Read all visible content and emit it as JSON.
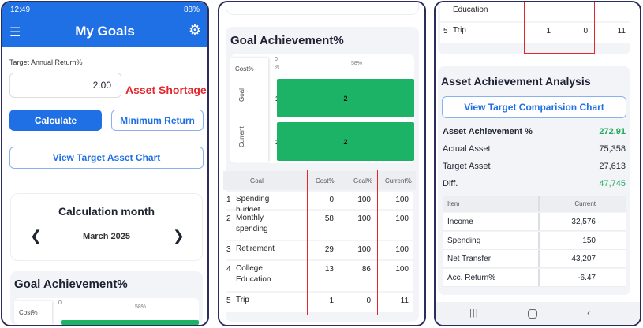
{
  "status_bar": {
    "time": "12:49",
    "battery": "88%"
  },
  "app": {
    "title": "My Goals"
  },
  "form": {
    "label": "Target Annual Return%",
    "value": "2.00",
    "warning": "Asset Shortage",
    "calculate": "Calculate",
    "minimum_return": "Minimum Return",
    "view_chart": "View Target Asset Chart"
  },
  "month": {
    "title": "Calculation month",
    "value": "March 2025"
  },
  "goal_achievement": {
    "title": "Goal Achievement%",
    "chart": {
      "legend": "Cost%",
      "axis_top": [
        "0",
        "%"
      ],
      "axis_mid": "58%",
      "rows": [
        {
          "label": "Goal",
          "start": "1",
          "value": "2"
        },
        {
          "label": "Current",
          "start": "1",
          "value": "2"
        }
      ]
    },
    "columns": [
      "Goal",
      "Cost%",
      "Goal%",
      "Current%"
    ],
    "rows": [
      {
        "no": "1",
        "name": "Spending budget",
        "cost": "0",
        "goal": "100",
        "current": "100"
      },
      {
        "no": "2",
        "name": "Monthly spending",
        "cost": "58",
        "goal": "100",
        "current": "100"
      },
      {
        "no": "3",
        "name": "Retirement",
        "cost": "29",
        "goal": "100",
        "current": "100"
      },
      {
        "no": "4",
        "name": "College Education",
        "cost": "13",
        "goal": "86",
        "current": "100"
      },
      {
        "no": "5",
        "name": "Trip",
        "cost": "1",
        "goal": "0",
        "current": "11"
      }
    ]
  },
  "asset_analysis": {
    "title": "Asset Achievement Analysis",
    "button": "View Target Comparision Chart",
    "stats": [
      {
        "label": "Asset Achievement %",
        "value": "272.91"
      },
      {
        "label": "Actual Asset",
        "value": "75,358"
      },
      {
        "label": "Target Asset",
        "value": "27,613"
      },
      {
        "label": "Diff.",
        "value": "47,745"
      }
    ],
    "columns": [
      "Item",
      "Current"
    ],
    "rows": [
      {
        "item": "Income",
        "current": "32,576"
      },
      {
        "item": "Spending",
        "current": "150"
      },
      {
        "item": "Net Transfer",
        "current": "43,207"
      },
      {
        "item": "Acc. Return%",
        "current": "-6.47"
      }
    ]
  },
  "colors": {
    "primary": "#1f6fe5",
    "warning": "#e2262b",
    "positive": "#1faa5c",
    "bar": "#1db366"
  }
}
